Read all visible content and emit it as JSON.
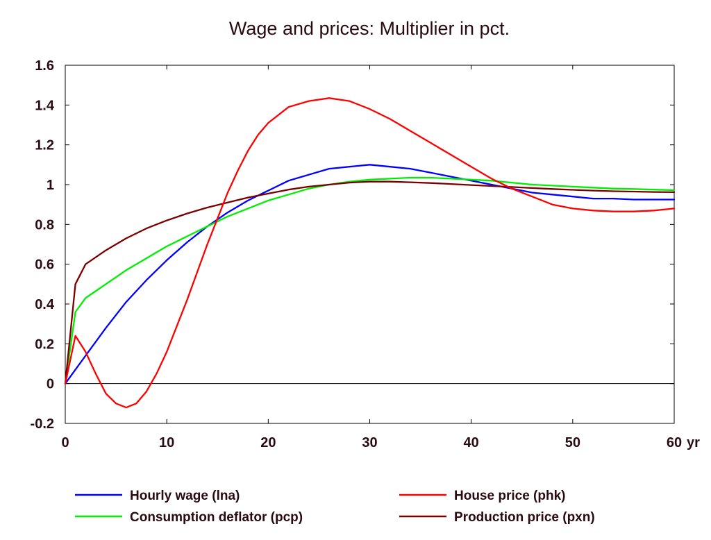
{
  "chart_data": {
    "type": "line",
    "title": "Wage and prices: Multiplier in pct.",
    "xlabel": "",
    "ylabel": "",
    "x_unit_label": "yr",
    "xlim": [
      0,
      60
    ],
    "ylim": [
      -0.2,
      1.6
    ],
    "x_ticks": [
      0,
      10,
      20,
      30,
      40,
      50,
      60
    ],
    "x_tick_labels": [
      "0",
      "10",
      "20",
      "30",
      "40",
      "50",
      "60"
    ],
    "y_ticks": [
      -0.2,
      0,
      0.2,
      0.4,
      0.6,
      0.8,
      1,
      1.2,
      1.4,
      1.6
    ],
    "y_tick_labels": [
      "-0.2",
      "0",
      "0.2",
      "0.4",
      "0.6",
      "0.8",
      "1",
      "1.2",
      "1.4",
      "1.6"
    ],
    "grid": false,
    "legend_position": "bottom",
    "series": [
      {
        "name": "Hourly wage (lna)",
        "color": "#0000ff",
        "x": [
          0,
          1,
          2,
          4,
          6,
          8,
          10,
          12,
          14,
          16,
          18,
          20,
          22,
          24,
          26,
          28,
          30,
          32,
          34,
          36,
          38,
          40,
          42,
          44,
          46,
          48,
          50,
          52,
          54,
          56,
          58,
          60
        ],
        "y": [
          0,
          0.07,
          0.14,
          0.28,
          0.41,
          0.52,
          0.62,
          0.71,
          0.79,
          0.86,
          0.92,
          0.97,
          1.02,
          1.05,
          1.08,
          1.09,
          1.1,
          1.09,
          1.08,
          1.06,
          1.04,
          1.02,
          1.0,
          0.98,
          0.96,
          0.95,
          0.94,
          0.93,
          0.93,
          0.925,
          0.925,
          0.925
        ]
      },
      {
        "name": "House price (phk)",
        "color": "#ff0000",
        "x": [
          0,
          1,
          2,
          3,
          4,
          5,
          6,
          7,
          8,
          9,
          10,
          11,
          12,
          13,
          14,
          15,
          16,
          17,
          18,
          19,
          20,
          22,
          24,
          26,
          28,
          30,
          32,
          34,
          36,
          38,
          40,
          42,
          44,
          46,
          48,
          50,
          52,
          54,
          56,
          58,
          60
        ],
        "y": [
          0,
          0.24,
          0.16,
          0.05,
          -0.05,
          -0.1,
          -0.12,
          -0.1,
          -0.04,
          0.05,
          0.16,
          0.29,
          0.42,
          0.56,
          0.7,
          0.83,
          0.96,
          1.07,
          1.17,
          1.25,
          1.31,
          1.39,
          1.42,
          1.435,
          1.42,
          1.38,
          1.33,
          1.27,
          1.21,
          1.15,
          1.09,
          1.03,
          0.98,
          0.94,
          0.9,
          0.88,
          0.87,
          0.865,
          0.865,
          0.87,
          0.88
        ]
      },
      {
        "name": "Consumption deflator (pcp)",
        "color": "#00ee00",
        "x": [
          0,
          1,
          2,
          4,
          6,
          8,
          10,
          12,
          14,
          16,
          18,
          20,
          22,
          24,
          26,
          28,
          30,
          32,
          34,
          36,
          38,
          40,
          42,
          44,
          46,
          48,
          50,
          52,
          54,
          56,
          58,
          60
        ],
        "y": [
          0,
          0.36,
          0.43,
          0.5,
          0.57,
          0.63,
          0.69,
          0.74,
          0.79,
          0.84,
          0.88,
          0.92,
          0.95,
          0.98,
          1.0,
          1.015,
          1.025,
          1.03,
          1.035,
          1.035,
          1.03,
          1.025,
          1.02,
          1.01,
          1.0,
          0.995,
          0.99,
          0.985,
          0.98,
          0.978,
          0.975,
          0.972
        ]
      },
      {
        "name": "Production price (pxn)",
        "color": "#7a0000",
        "x": [
          0,
          1,
          2,
          4,
          6,
          8,
          10,
          12,
          14,
          16,
          18,
          20,
          22,
          24,
          26,
          28,
          30,
          32,
          34,
          36,
          38,
          40,
          42,
          44,
          46,
          48,
          50,
          52,
          54,
          56,
          58,
          60
        ],
        "y": [
          0,
          0.5,
          0.6,
          0.67,
          0.73,
          0.78,
          0.82,
          0.855,
          0.885,
          0.91,
          0.935,
          0.955,
          0.975,
          0.99,
          1.0,
          1.01,
          1.015,
          1.015,
          1.012,
          1.008,
          1.003,
          0.998,
          0.993,
          0.988,
          0.983,
          0.978,
          0.974,
          0.97,
          0.967,
          0.965,
          0.963,
          0.962
        ]
      }
    ]
  }
}
